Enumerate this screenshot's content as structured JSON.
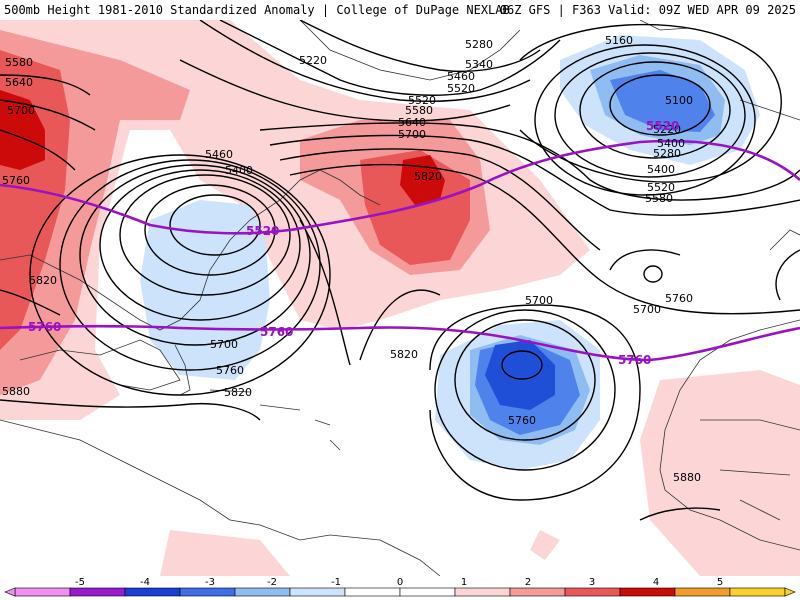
{
  "header": {
    "title_left": "500mb Height 1981-2010 Standardized Anomaly | College of DuPage NEXLAB",
    "title_right": "06Z GFS | F363 Valid: 09Z WED APR 09 2025"
  },
  "colors": {
    "pos1": "#fcd6d6",
    "pos2": "#f59a9a",
    "pos3": "#e85858",
    "pos4": "#cc0a0a",
    "neg1": "#cce3fb",
    "neg2": "#8fbdf2",
    "neg3": "#4f82ea",
    "neg4": "#1f4fd6",
    "contour": "#000000",
    "highlight": "#9a12c4",
    "coast": "#333333"
  },
  "contour_labels": [
    "5580",
    "5640",
    "5700",
    "5760",
    "5820",
    "5880",
    "5460",
    "5400",
    "5520",
    "5220",
    "5280",
    "5340",
    "5160",
    "5100",
    "5760",
    "5700",
    "5820",
    "5760",
    "5820",
    "5700",
    "5760",
    "5820",
    "5880",
    "5580",
    "5640",
    "5700",
    "5520",
    "5460",
    "5400",
    "5280",
    "5220",
    "5400",
    "5520",
    "5580",
    "5700"
  ],
  "highlight_labels": [
    "5520",
    "5520",
    "5760",
    "5760",
    "5760"
  ],
  "colorbar": {
    "ticks": [
      "-5",
      "-4",
      "-3",
      "-2",
      "-1",
      "0",
      "1",
      "2",
      "3",
      "4",
      "5"
    ],
    "bins": [
      "#f090f0",
      "#9a1ad0",
      "#1a3fd6",
      "#3f6ee8",
      "#8fbdf2",
      "#cce3fb",
      "#ffffff",
      "#ffffff",
      "#fcd6d6",
      "#f59a9a",
      "#e85858",
      "#cc0a0a",
      "#f29b2a",
      "#f7d02a"
    ]
  }
}
